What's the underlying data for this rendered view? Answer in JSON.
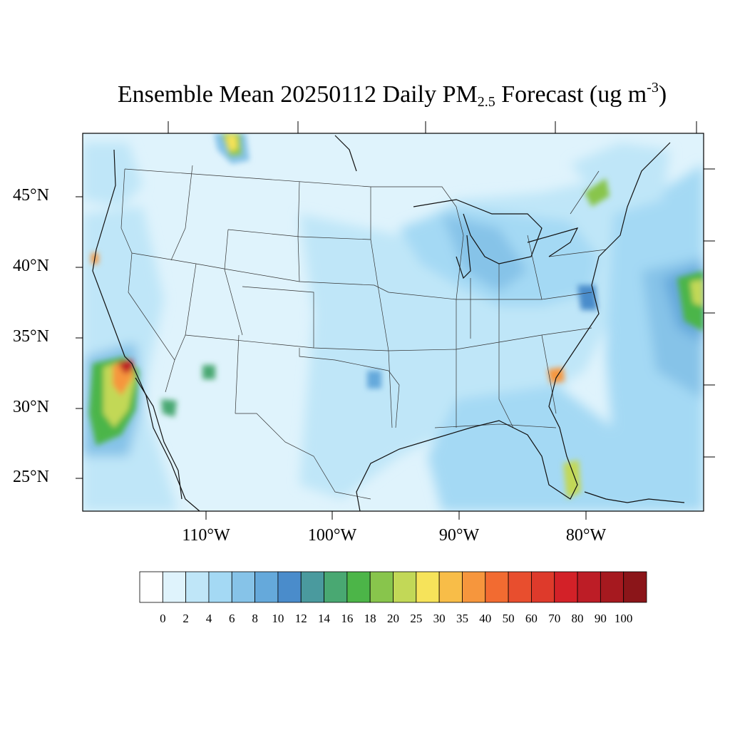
{
  "title": {
    "prefix": "Ensemble Mean 20250112 Daily PM",
    "subscript": "2.5",
    "middle": " Forecast (ug m",
    "superscript": "-3",
    "suffix": ")"
  },
  "lat_labels": [
    "45°N",
    "40°N",
    "35°N",
    "30°N",
    "25°N"
  ],
  "lon_labels": [
    "110°W",
    "100°W",
    "90°W",
    "80°W"
  ],
  "colorbar": {
    "labels": [
      "0",
      "2",
      "4",
      "6",
      "8",
      "10",
      "12",
      "14",
      "16",
      "18",
      "20",
      "25",
      "30",
      "35",
      "40",
      "50",
      "60",
      "70",
      "80",
      "90",
      "100"
    ],
    "colors": [
      "#ffffff",
      "#dff3fc",
      "#bfe6f8",
      "#a4d9f4",
      "#86c3e8",
      "#65a9db",
      "#4a8ccb",
      "#4a9a9e",
      "#49a872",
      "#4cb548",
      "#88c54c",
      "#c2d857",
      "#f6e35a",
      "#f8bd48",
      "#f6963d",
      "#f26b31",
      "#e84e2e",
      "#de3a2b",
      "#d32128",
      "#bd1d26",
      "#a6191f",
      "#8b1519"
    ]
  }
}
